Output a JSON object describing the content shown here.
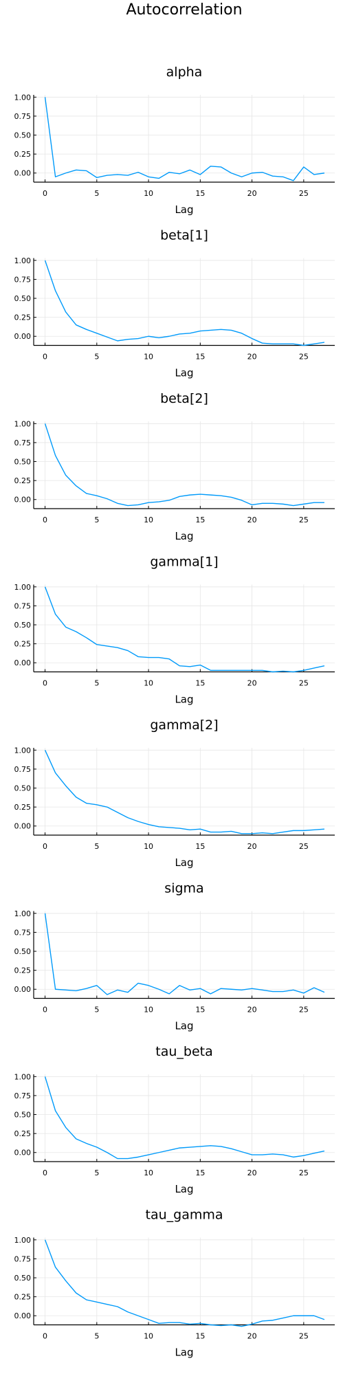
{
  "figure_title": "Autocorrelation",
  "chart_data": [
    {
      "type": "line",
      "title": "alpha",
      "xlabel": "Lag",
      "ylabel": "",
      "x": [
        0,
        1,
        2,
        3,
        4,
        5,
        6,
        7,
        8,
        9,
        10,
        11,
        12,
        13,
        14,
        15,
        16,
        17,
        18,
        19,
        20,
        21,
        22,
        23,
        24,
        25,
        26,
        27
      ],
      "xticks": [
        "0",
        "5",
        "10",
        "15",
        "20",
        "25"
      ],
      "yticks": [
        "0.00",
        "0.25",
        "0.50",
        "0.75",
        "1.00"
      ],
      "ylim": [
        -0.12,
        1.03
      ],
      "grid": true,
      "series": [
        {
          "values": [
            1.0,
            -0.05,
            0.0,
            0.04,
            0.03,
            -0.06,
            -0.03,
            -0.02,
            -0.03,
            0.01,
            -0.05,
            -0.07,
            0.01,
            -0.01,
            0.04,
            -0.02,
            0.09,
            0.08,
            0.0,
            -0.05,
            0.0,
            0.01,
            -0.04,
            -0.05,
            -0.1,
            0.08,
            -0.02,
            0.0
          ],
          "color": "#009AFA"
        }
      ]
    },
    {
      "type": "line",
      "title": "beta[1]",
      "xlabel": "Lag",
      "ylabel": "",
      "x": [
        0,
        1,
        2,
        3,
        4,
        5,
        6,
        7,
        8,
        9,
        10,
        11,
        12,
        13,
        14,
        15,
        16,
        17,
        18,
        19,
        20,
        21,
        22,
        23,
        24,
        25,
        26,
        27
      ],
      "xticks": [
        "0",
        "5",
        "10",
        "15",
        "20",
        "25"
      ],
      "yticks": [
        "0.00",
        "0.25",
        "0.50",
        "0.75",
        "1.00"
      ],
      "ylim": [
        -0.12,
        1.03
      ],
      "grid": true,
      "series": [
        {
          "values": [
            1.0,
            0.6,
            0.32,
            0.15,
            0.09,
            0.04,
            -0.01,
            -0.06,
            -0.04,
            -0.03,
            0.0,
            -0.02,
            0.0,
            0.03,
            0.04,
            0.07,
            0.08,
            0.09,
            0.08,
            0.04,
            -0.03,
            -0.09,
            -0.1,
            -0.1,
            -0.1,
            -0.12,
            -0.1,
            -0.08
          ],
          "color": "#009AFA"
        }
      ]
    },
    {
      "type": "line",
      "title": "beta[2]",
      "xlabel": "Lag",
      "ylabel": "",
      "x": [
        0,
        1,
        2,
        3,
        4,
        5,
        6,
        7,
        8,
        9,
        10,
        11,
        12,
        13,
        14,
        15,
        16,
        17,
        18,
        19,
        20,
        21,
        22,
        23,
        24,
        25,
        26,
        27
      ],
      "xticks": [
        "0",
        "5",
        "10",
        "15",
        "20",
        "25"
      ],
      "yticks": [
        "0.00",
        "0.25",
        "0.50",
        "0.75",
        "1.00"
      ],
      "ylim": [
        -0.12,
        1.03
      ],
      "grid": true,
      "series": [
        {
          "values": [
            1.0,
            0.58,
            0.32,
            0.18,
            0.08,
            0.05,
            0.01,
            -0.05,
            -0.08,
            -0.07,
            -0.04,
            -0.03,
            -0.01,
            0.04,
            0.06,
            0.07,
            0.06,
            0.05,
            0.03,
            -0.01,
            -0.07,
            -0.05,
            -0.05,
            -0.06,
            -0.08,
            -0.06,
            -0.04,
            -0.04
          ],
          "color": "#009AFA"
        }
      ]
    },
    {
      "type": "line",
      "title": "gamma[1]",
      "xlabel": "Lag",
      "ylabel": "",
      "x": [
        0,
        1,
        2,
        3,
        4,
        5,
        6,
        7,
        8,
        9,
        10,
        11,
        12,
        13,
        14,
        15,
        16,
        17,
        18,
        19,
        20,
        21,
        22,
        23,
        24,
        25,
        26,
        27
      ],
      "xticks": [
        "0",
        "5",
        "10",
        "15",
        "20",
        "25"
      ],
      "yticks": [
        "0.00",
        "0.25",
        "0.50",
        "0.75",
        "1.00"
      ],
      "ylim": [
        -0.12,
        1.03
      ],
      "grid": true,
      "series": [
        {
          "values": [
            1.0,
            0.64,
            0.47,
            0.41,
            0.33,
            0.24,
            0.22,
            0.2,
            0.16,
            0.08,
            0.07,
            0.07,
            0.05,
            -0.04,
            -0.05,
            -0.03,
            -0.1,
            -0.1,
            -0.1,
            -0.1,
            -0.1,
            -0.1,
            -0.12,
            -0.11,
            -0.12,
            -0.1,
            -0.07,
            -0.04
          ],
          "color": "#009AFA"
        }
      ]
    },
    {
      "type": "line",
      "title": "gamma[2]",
      "xlabel": "Lag",
      "ylabel": "",
      "x": [
        0,
        1,
        2,
        3,
        4,
        5,
        6,
        7,
        8,
        9,
        10,
        11,
        12,
        13,
        14,
        15,
        16,
        17,
        18,
        19,
        20,
        21,
        22,
        23,
        24,
        25,
        26,
        27
      ],
      "xticks": [
        "0",
        "5",
        "10",
        "15",
        "20",
        "25"
      ],
      "yticks": [
        "0.00",
        "0.25",
        "0.50",
        "0.75",
        "1.00"
      ],
      "ylim": [
        -0.12,
        1.03
      ],
      "grid": true,
      "series": [
        {
          "values": [
            1.0,
            0.7,
            0.53,
            0.38,
            0.3,
            0.28,
            0.25,
            0.18,
            0.11,
            0.06,
            0.02,
            -0.01,
            -0.02,
            -0.03,
            -0.05,
            -0.04,
            -0.08,
            -0.08,
            -0.07,
            -0.1,
            -0.1,
            -0.09,
            -0.1,
            -0.08,
            -0.06,
            -0.06,
            -0.05,
            -0.04
          ],
          "color": "#009AFA"
        }
      ]
    },
    {
      "type": "line",
      "title": "sigma",
      "xlabel": "Lag",
      "ylabel": "",
      "x": [
        0,
        1,
        2,
        3,
        4,
        5,
        6,
        7,
        8,
        9,
        10,
        11,
        12,
        13,
        14,
        15,
        16,
        17,
        18,
        19,
        20,
        21,
        22,
        23,
        24,
        25,
        26,
        27
      ],
      "xticks": [
        "0",
        "5",
        "10",
        "15",
        "20",
        "25"
      ],
      "yticks": [
        "0.00",
        "0.25",
        "0.50",
        "0.75",
        "1.00"
      ],
      "ylim": [
        -0.12,
        1.03
      ],
      "grid": true,
      "series": [
        {
          "values": [
            1.0,
            0.0,
            -0.01,
            -0.02,
            0.01,
            0.05,
            -0.07,
            -0.01,
            -0.04,
            0.08,
            0.05,
            0.0,
            -0.06,
            0.05,
            -0.01,
            0.01,
            -0.06,
            0.01,
            0.0,
            -0.01,
            0.01,
            -0.01,
            -0.03,
            -0.03,
            -0.01,
            -0.05,
            0.02,
            -0.04
          ],
          "color": "#009AFA"
        }
      ]
    },
    {
      "type": "line",
      "title": "tau_beta",
      "xlabel": "Lag",
      "ylabel": "",
      "x": [
        0,
        1,
        2,
        3,
        4,
        5,
        6,
        7,
        8,
        9,
        10,
        11,
        12,
        13,
        14,
        15,
        16,
        17,
        18,
        19,
        20,
        21,
        22,
        23,
        24,
        25,
        26,
        27
      ],
      "xticks": [
        "0",
        "5",
        "10",
        "15",
        "20",
        "25"
      ],
      "yticks": [
        "0.00",
        "0.25",
        "0.50",
        "0.75",
        "1.00"
      ],
      "ylim": [
        -0.12,
        1.03
      ],
      "grid": true,
      "series": [
        {
          "values": [
            1.0,
            0.55,
            0.33,
            0.18,
            0.12,
            0.07,
            0.0,
            -0.08,
            -0.08,
            -0.06,
            -0.03,
            0.0,
            0.03,
            0.06,
            0.07,
            0.08,
            0.09,
            0.08,
            0.05,
            0.01,
            -0.03,
            -0.03,
            -0.02,
            -0.03,
            -0.06,
            -0.04,
            -0.01,
            0.02
          ],
          "color": "#009AFA"
        }
      ]
    },
    {
      "type": "line",
      "title": "tau_gamma",
      "xlabel": "Lag",
      "ylabel": "",
      "x": [
        0,
        1,
        2,
        3,
        4,
        5,
        6,
        7,
        8,
        9,
        10,
        11,
        12,
        13,
        14,
        15,
        16,
        17,
        18,
        19,
        20,
        21,
        22,
        23,
        24,
        25,
        26,
        27
      ],
      "xticks": [
        "0",
        "5",
        "10",
        "15",
        "20",
        "25"
      ],
      "yticks": [
        "0.00",
        "0.25",
        "0.50",
        "0.75",
        "1.00"
      ],
      "ylim": [
        -0.12,
        1.03
      ],
      "grid": true,
      "series": [
        {
          "values": [
            1.0,
            0.64,
            0.46,
            0.3,
            0.21,
            0.18,
            0.15,
            0.12,
            0.05,
            0.0,
            -0.05,
            -0.1,
            -0.09,
            -0.09,
            -0.11,
            -0.1,
            -0.12,
            -0.13,
            -0.12,
            -0.14,
            -0.11,
            -0.07,
            -0.06,
            -0.03,
            0.0,
            0.0,
            0.0,
            -0.05
          ],
          "color": "#009AFA"
        }
      ]
    }
  ]
}
